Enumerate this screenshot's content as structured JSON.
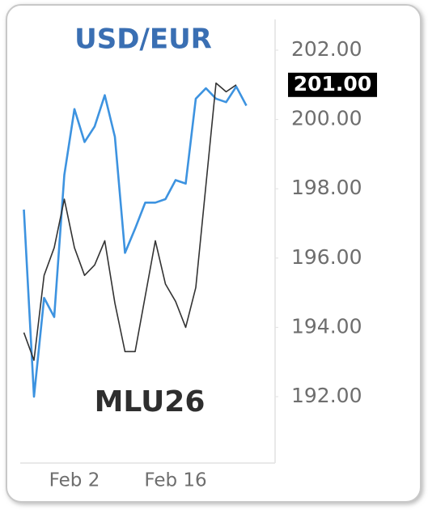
{
  "chart_data": {
    "type": "line",
    "title": "USD/EUR",
    "subtitle": "MLU26",
    "categories": [
      null,
      null,
      null,
      null,
      null,
      "Feb 2",
      null,
      null,
      null,
      null,
      null,
      null,
      null,
      null,
      null,
      "Feb 16",
      null,
      null,
      null,
      null,
      null,
      null,
      null
    ],
    "series": [
      {
        "name": "USD/EUR",
        "color": "#3d93e0",
        "values": [
          197.4,
          192.0,
          194.85,
          194.3,
          198.4,
          200.3,
          199.35,
          199.8,
          200.7,
          199.5,
          196.15,
          196.85,
          197.6,
          197.6,
          197.7,
          198.25,
          198.15,
          200.6,
          200.9,
          200.6,
          200.5,
          200.95,
          200.4
        ]
      },
      {
        "name": "MLU26",
        "color": "#333333",
        "values": [
          193.85,
          193.05,
          195.5,
          196.3,
          197.7,
          196.3,
          195.5,
          195.8,
          196.5,
          194.7,
          193.3,
          193.3,
          194.9,
          196.5,
          195.25,
          194.75,
          194.0,
          195.15,
          198.1,
          201.05,
          200.8,
          201.0,
          null
        ]
      }
    ],
    "ylim": [
      192,
      202
    ],
    "yticks": [
      {
        "value": 192,
        "label": "192.00"
      },
      {
        "value": 194,
        "label": "194.00"
      },
      {
        "value": 196,
        "label": "196.00"
      },
      {
        "value": 198,
        "label": "198.00"
      },
      {
        "value": 200,
        "label": "200.00"
      },
      {
        "value": 202,
        "label": "202.00"
      }
    ],
    "price_marker": {
      "value": 201,
      "label": "201.00"
    }
  }
}
